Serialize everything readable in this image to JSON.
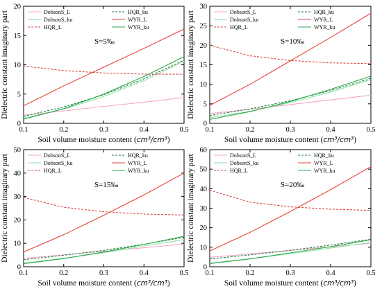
{
  "figure": {
    "xlabel_prefix": "Soil volume moisture content (",
    "xlabel_unit": "cm³/cm³",
    "xlabel_suffix": ")",
    "ylabel": "Dielectric constant imaginary part"
  },
  "series_styles": [
    {
      "name": "DobsonS_L",
      "color": "#f4a6c8",
      "dash": "solid"
    },
    {
      "name": "HQR_ku",
      "color": "#1a7f3a",
      "dash": "dashed"
    },
    {
      "name": "DobsonS_ku",
      "color": "#8fe0a8",
      "dash": "solid"
    },
    {
      "name": "WYR_L",
      "color": "#e8423c",
      "dash": "solid"
    },
    {
      "name": "HQR_L",
      "color": "#d9443d",
      "dash": "dashed"
    },
    {
      "name": "WYR_ku",
      "color": "#2aa64a",
      "dash": "solid"
    }
  ],
  "chart_data": [
    {
      "type": "line",
      "title": "",
      "annotation": "S=5‰",
      "xlim": [
        0.1,
        0.5
      ],
      "ylim": [
        0,
        20
      ],
      "xticks": [
        "0.1",
        "0.2",
        "0.3",
        "0.4",
        "0.5"
      ],
      "yticks": [
        "0",
        "5",
        "10",
        "15",
        "20"
      ],
      "x": [
        0.1,
        0.2,
        0.3,
        0.4,
        0.5
      ],
      "series": [
        {
          "name": "DobsonS_L",
          "values": [
            1.4,
            2.1,
            2.9,
            3.6,
            4.4
          ]
        },
        {
          "name": "HQR_ku",
          "values": [
            1.2,
            2.8,
            4.9,
            7.6,
            10.8
          ]
        },
        {
          "name": "DobsonS_ku",
          "values": [
            0.9,
            2.4,
            4.6,
            7.3,
            10.6
          ]
        },
        {
          "name": "WYR_L",
          "values": [
            3.0,
            6.4,
            9.6,
            12.8,
            16.1
          ]
        },
        {
          "name": "HQR_L",
          "values": [
            9.8,
            9.0,
            8.6,
            8.4,
            8.4
          ]
        },
        {
          "name": "WYR_ku",
          "values": [
            0.7,
            2.5,
            5.0,
            8.0,
            11.4
          ]
        }
      ]
    },
    {
      "type": "line",
      "title": "",
      "annotation": "S=10‰",
      "xlim": [
        0.1,
        0.5
      ],
      "ylim": [
        0,
        30
      ],
      "xticks": [
        "0.1",
        "0.2",
        "0.3",
        "0.4",
        "0.5"
      ],
      "yticks": [
        "0",
        "5",
        "10",
        "15",
        "20",
        "25",
        "30"
      ],
      "x": [
        0.1,
        0.2,
        0.3,
        0.4,
        0.5
      ],
      "series": [
        {
          "name": "DobsonS_L",
          "values": [
            2.5,
            3.6,
            4.8,
            6.0,
            7.2
          ]
        },
        {
          "name": "HQR_ku",
          "values": [
            2.0,
            3.7,
            5.8,
            8.4,
            11.5
          ]
        },
        {
          "name": "DobsonS_ku",
          "values": [
            1.4,
            3.1,
            5.3,
            8.0,
            11.2
          ]
        },
        {
          "name": "WYR_L",
          "values": [
            4.6,
            10.0,
            16.0,
            22.0,
            28.2
          ]
        },
        {
          "name": "HQR_L",
          "values": [
            20.0,
            17.3,
            16.1,
            15.5,
            15.3
          ]
        },
        {
          "name": "WYR_ku",
          "values": [
            1.0,
            3.0,
            5.6,
            8.7,
            12.1
          ]
        }
      ]
    },
    {
      "type": "line",
      "title": "",
      "annotation": "S=15‰",
      "xlim": [
        0.1,
        0.5
      ],
      "ylim": [
        0,
        50
      ],
      "xticks": [
        "0.1",
        "0.2",
        "0.3",
        "0.4",
        "0.5"
      ],
      "yticks": [
        "0",
        "10",
        "20",
        "30",
        "40",
        "50"
      ],
      "x": [
        0.1,
        0.2,
        0.3,
        0.4,
        0.5
      ],
      "series": [
        {
          "name": "DobsonS_L",
          "values": [
            3.6,
            5.1,
            6.6,
            8.1,
            9.7
          ]
        },
        {
          "name": "HQR_ku",
          "values": [
            3.0,
            4.9,
            7.0,
            9.6,
            12.6
          ]
        },
        {
          "name": "DobsonS_ku",
          "values": [
            1.6,
            3.6,
            6.0,
            8.8,
            11.6
          ]
        },
        {
          "name": "WYR_L",
          "values": [
            6.3,
            13.7,
            22.0,
            30.7,
            40.0
          ]
        },
        {
          "name": "HQR_L",
          "values": [
            29.6,
            25.4,
            23.5,
            22.5,
            22.1
          ]
        },
        {
          "name": "WYR_ku",
          "values": [
            1.3,
            3.5,
            6.3,
            9.5,
            13.0
          ]
        }
      ]
    },
    {
      "type": "line",
      "title": "",
      "annotation": "S=20‰",
      "xlim": [
        0.1,
        0.5
      ],
      "ylim": [
        0,
        60
      ],
      "xticks": [
        "0.1",
        "0.2",
        "0.3",
        "0.4",
        "0.5"
      ],
      "yticks": [
        "0",
        "10",
        "20",
        "30",
        "40",
        "50",
        "60"
      ],
      "x": [
        0.1,
        0.2,
        0.3,
        0.4,
        0.5
      ],
      "series": [
        {
          "name": "DobsonS_L",
          "values": [
            4.8,
            6.6,
            8.4,
            10.2,
            12.0
          ]
        },
        {
          "name": "HQR_ku",
          "values": [
            4.0,
            6.1,
            8.4,
            11.1,
            14.1
          ]
        },
        {
          "name": "DobsonS_ku",
          "values": [
            1.9,
            4.1,
            6.7,
            9.6,
            12.4
          ]
        },
        {
          "name": "WYR_L",
          "values": [
            8.1,
            17.6,
            28.3,
            39.5,
            51.3
          ]
        },
        {
          "name": "HQR_L",
          "values": [
            39.2,
            33.1,
            30.7,
            29.5,
            28.9
          ]
        },
        {
          "name": "WYR_ku",
          "values": [
            1.6,
            4.0,
            7.1,
            10.3,
            13.8
          ]
        }
      ]
    }
  ]
}
